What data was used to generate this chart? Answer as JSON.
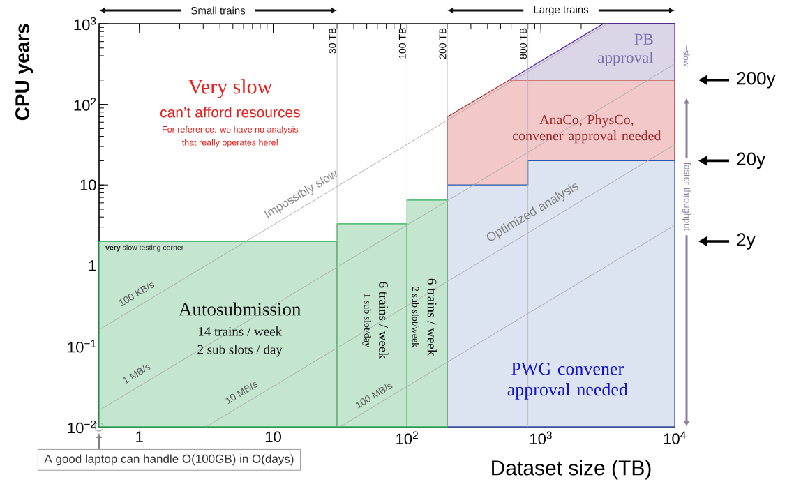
{
  "chart_data": {
    "type": "area",
    "xlabel": "Dataset size (TB)",
    "ylabel": "CPU years",
    "log": "xy",
    "xlim": [
      0.5,
      10000
    ],
    "ylim": [
      0.01,
      1000
    ],
    "xticks": [
      1,
      10,
      {
        "value": 100,
        "label": "10$^{2}$"
      },
      {
        "value": 1000,
        "label": "10$^{3}$"
      },
      {
        "value": 10000,
        "label": "10$^{4}$"
      }
    ],
    "yticks": [
      {
        "value": 0.01,
        "label": "10$^{−2}$"
      },
      {
        "value": 0.1,
        "label": "10$^{−1}$"
      },
      1,
      10,
      {
        "value": 100,
        "label": "10$^{2}$"
      },
      {
        "value": 1000,
        "label": "10$^{3}$"
      }
    ],
    "series": [
      {
        "color": "#dcd5e8",
        "x": [
          580,
          2930,
          10000
        ],
        "values": [
          200,
          1000,
          1000
        ]
      },
      {
        "color": "#f2c8c8",
        "x": [
          200,
          580,
          10000
        ],
        "values": [
          70,
          200,
          200
        ]
      },
      {
        "color": "#dce3f1",
        "x": [
          200,
          800,
          800,
          10000
        ],
        "values": [
          10,
          10,
          20,
          20
        ]
      },
      {
        "color": "#c4e6cf",
        "x": [
          0.5,
          30
        ],
        "values": [
          2,
          2
        ]
      },
      {
        "color": "#c4e6cf",
        "x": [
          30,
          100
        ],
        "values": [
          3.3,
          3.3
        ]
      },
      {
        "color": "#c4e6cf",
        "x": [
          100,
          200
        ],
        "values": [
          6.5,
          6.5
        ]
      },
      {
        "type": "line",
        "color": "#a8a8a8",
        "x": [
          0.5,
          3150
        ],
        "values": [
          0.16,
          1000
        ]
      },
      {
        "type": "line",
        "color": "#a8a8a8",
        "x": [
          0.5,
          10000
        ],
        "values": [
          0.016,
          317
        ]
      },
      {
        "type": "line",
        "color": "#a8a8a8",
        "x": [
          3.15,
          10000
        ],
        "values": [
          0.01,
          31.7
        ]
      },
      {
        "type": "line",
        "color": "#a8a8a8",
        "x": [
          31.5,
          10000
        ],
        "values": [
          0.01,
          3.17
        ]
      }
    ],
    "ref_lines": [
      {
        "axis": "x",
        "value": 30,
        "label": "30 TB",
        "color": "#b4b4b4"
      },
      {
        "axis": "x",
        "value": 100,
        "label": "100 TB",
        "color": "#b4b4b4"
      },
      {
        "axis": "x",
        "value": 200,
        "label": "200 TB",
        "color": "#b4b4b4"
      },
      {
        "axis": "x",
        "value": 800,
        "label": "800 TB",
        "color": "#b4b4b4"
      }
    ],
    "annotations": [
      "Very slow",
      "can’t afford resources",
      "For reference: we have no analysis",
      "that really operates here!",
      "**very** slow testing corner",
      "Autosubmission",
      "14 trains / week",
      "2 sub slots / day",
      "6 trains / week",
      "1 sub slot/day",
      "6 trains / week",
      "2 sub slot/week",
      "PWG convener approval needed",
      "AnaCo, PhysCo, convener approval needed",
      "PB approval",
      "Impossibly slow",
      "100 KB/s",
      "1 MB/s",
      "10 MB/s",
      "100 MB/s",
      "Optimized analysis",
      "~slow",
      "faster throughput",
      "Small trains",
      "Large trains",
      "A good laptop can handle O(100GB) in O(days)",
      "200y",
      "20y",
      "2y"
    ]
  }
}
